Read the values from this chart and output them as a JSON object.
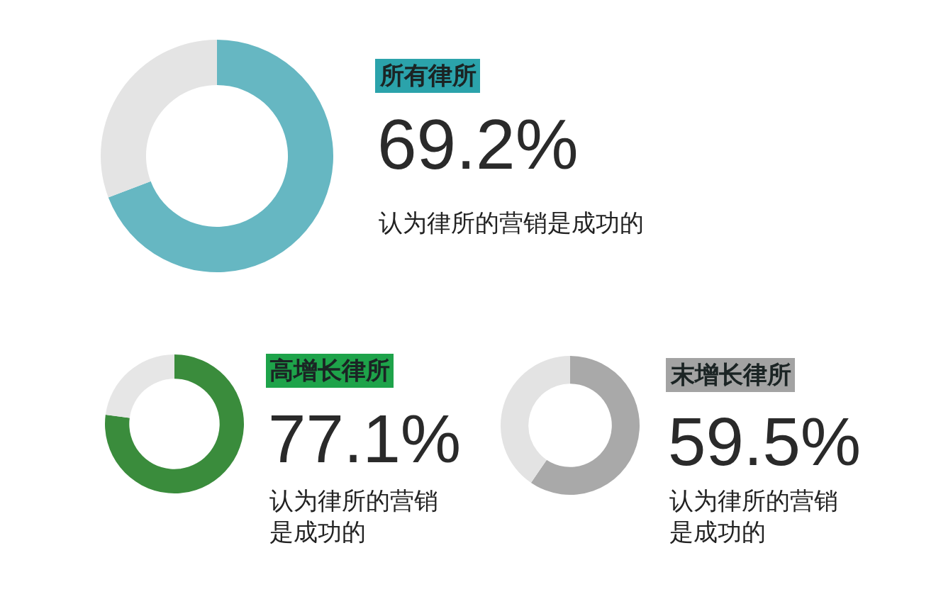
{
  "chart_data": [
    {
      "type": "donut",
      "title": "所有律所",
      "categories": [
        null,
        null
      ],
      "values": [
        69.2,
        30.8
      ],
      "colors": [
        "#66b7c2",
        "#e4e4e4"
      ],
      "annotations": [
        "69.2%",
        "认为律所的营销是成功的"
      ]
    },
    {
      "type": "donut",
      "title": "高增长律所",
      "categories": [
        null,
        null
      ],
      "values": [
        77.1,
        22.9
      ],
      "colors": [
        "#3a8c3c",
        "#e6e6e6"
      ],
      "annotations": [
        "77.1%",
        "认为律所的营销是成功的"
      ]
    },
    {
      "type": "donut",
      "title": "末增长律所",
      "categories": [
        null,
        null
      ],
      "values": [
        59.5,
        40.5
      ],
      "colors": [
        "#a9a9a9",
        "#e3e3e3"
      ],
      "annotations": [
        "59.5%",
        "认为律所的营销是成功的"
      ]
    }
  ]
}
